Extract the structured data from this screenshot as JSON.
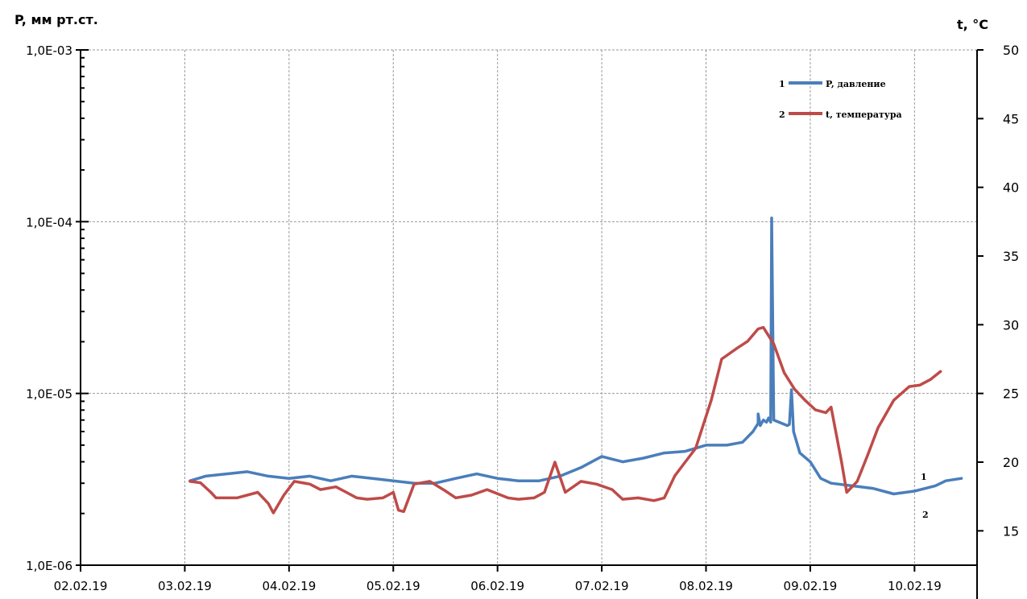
{
  "chart_data": {
    "type": "line",
    "left_axis": {
      "title": "P, мм рт.ст.",
      "scale": "log",
      "range": [
        1e-06,
        0.001
      ],
      "ticks": [
        {
          "value": 0.001,
          "label": "1,0E-03"
        },
        {
          "value": 0.0001,
          "label": "1,0E-04"
        },
        {
          "value": 1e-05,
          "label": "1,0E-05"
        },
        {
          "value": 1e-06,
          "label": "1,0E-06"
        }
      ]
    },
    "right_axis": {
      "title": "t, °C",
      "range": [
        12.5,
        50
      ],
      "ticks": [
        {
          "value": 50,
          "label": "50"
        },
        {
          "value": 45,
          "label": "45"
        },
        {
          "value": 40,
          "label": "40"
        },
        {
          "value": 35,
          "label": "35"
        },
        {
          "value": 30,
          "label": "30"
        },
        {
          "value": 25,
          "label": "25"
        },
        {
          "value": 20,
          "label": "20"
        },
        {
          "value": 15,
          "label": "15"
        }
      ]
    },
    "x_axis": {
      "range": [
        0,
        8.6
      ],
      "ticks": [
        {
          "value": 0,
          "label": "02.02.19"
        },
        {
          "value": 1,
          "label": "03.02.19"
        },
        {
          "value": 2,
          "label": "04.02.19"
        },
        {
          "value": 3,
          "label": "05.02.19"
        },
        {
          "value": 4,
          "label": "06.02.19"
        },
        {
          "value": 5,
          "label": "07.02.19"
        },
        {
          "value": 6,
          "label": "08.02.19"
        },
        {
          "value": 7,
          "label": "09.02.19"
        },
        {
          "value": 8,
          "label": "10.02.19"
        }
      ]
    },
    "grid": true,
    "legend": {
      "placement": "top-right",
      "entries": [
        {
          "num": "1",
          "name": "P, давление"
        },
        {
          "num": "2",
          "name": "t, температура"
        }
      ]
    },
    "series": [
      {
        "name": "P, давление",
        "label": "1",
        "axis": "left",
        "color": "#4a7ebb",
        "points": [
          [
            1.05,
            3.1e-06
          ],
          [
            1.2,
            3.3e-06
          ],
          [
            1.4,
            3.4e-06
          ],
          [
            1.6,
            3.5e-06
          ],
          [
            1.8,
            3.3e-06
          ],
          [
            2.0,
            3.2e-06
          ],
          [
            2.2,
            3.3e-06
          ],
          [
            2.4,
            3.1e-06
          ],
          [
            2.6,
            3.3e-06
          ],
          [
            2.8,
            3.2e-06
          ],
          [
            3.0,
            3.1e-06
          ],
          [
            3.2,
            3e-06
          ],
          [
            3.4,
            3e-06
          ],
          [
            3.6,
            3.2e-06
          ],
          [
            3.8,
            3.4e-06
          ],
          [
            4.0,
            3.2e-06
          ],
          [
            4.2,
            3.1e-06
          ],
          [
            4.4,
            3.1e-06
          ],
          [
            4.6,
            3.3e-06
          ],
          [
            4.8,
            3.7e-06
          ],
          [
            5.0,
            4.3e-06
          ],
          [
            5.2,
            4e-06
          ],
          [
            5.4,
            4.2e-06
          ],
          [
            5.6,
            4.5e-06
          ],
          [
            5.8,
            4.6e-06
          ],
          [
            6.0,
            5e-06
          ],
          [
            6.2,
            5e-06
          ],
          [
            6.35,
            5.2e-06
          ],
          [
            6.45,
            6e-06
          ],
          [
            6.5,
            6.7e-06
          ],
          [
            6.5,
            7.6e-06
          ],
          [
            6.52,
            6.5e-06
          ],
          [
            6.55,
            7e-06
          ],
          [
            6.58,
            6.8e-06
          ],
          [
            6.6,
            7.2e-06
          ],
          [
            6.62,
            6.8e-06
          ],
          [
            6.63,
            0.000105
          ],
          [
            6.65,
            7e-06
          ],
          [
            6.7,
            6.8e-06
          ],
          [
            6.78,
            6.5e-06
          ],
          [
            6.8,
            6.6e-06
          ],
          [
            6.82,
            1.05e-05
          ],
          [
            6.84,
            6e-06
          ],
          [
            6.9,
            4.5e-06
          ],
          [
            7.0,
            4e-06
          ],
          [
            7.1,
            3.2e-06
          ],
          [
            7.2,
            3e-06
          ],
          [
            7.4,
            2.9e-06
          ],
          [
            7.6,
            2.8e-06
          ],
          [
            7.8,
            2.6e-06
          ],
          [
            8.0,
            2.7e-06
          ],
          [
            8.2,
            2.9e-06
          ],
          [
            8.3,
            3.1e-06
          ],
          [
            8.45,
            3.2e-06
          ]
        ]
      },
      {
        "name": "t, температура",
        "label": "2",
        "axis": "right",
        "color": "#be4b48",
        "points": [
          [
            1.05,
            18.6
          ],
          [
            1.15,
            18.5
          ],
          [
            1.25,
            17.8
          ],
          [
            1.3,
            17.4
          ],
          [
            1.5,
            17.4
          ],
          [
            1.7,
            17.8
          ],
          [
            1.8,
            17.0
          ],
          [
            1.85,
            16.3
          ],
          [
            1.95,
            17.6
          ],
          [
            2.05,
            18.6
          ],
          [
            2.2,
            18.4
          ],
          [
            2.3,
            18.0
          ],
          [
            2.45,
            18.2
          ],
          [
            2.55,
            17.8
          ],
          [
            2.65,
            17.4
          ],
          [
            2.75,
            17.3
          ],
          [
            2.9,
            17.4
          ],
          [
            3.0,
            17.8
          ],
          [
            3.05,
            16.5
          ],
          [
            3.1,
            16.4
          ],
          [
            3.2,
            18.4
          ],
          [
            3.35,
            18.6
          ],
          [
            3.5,
            17.9
          ],
          [
            3.6,
            17.4
          ],
          [
            3.75,
            17.6
          ],
          [
            3.9,
            18.0
          ],
          [
            4.1,
            17.4
          ],
          [
            4.2,
            17.3
          ],
          [
            4.35,
            17.4
          ],
          [
            4.45,
            17.8
          ],
          [
            4.55,
            20.0
          ],
          [
            4.65,
            17.8
          ],
          [
            4.8,
            18.6
          ],
          [
            4.95,
            18.4
          ],
          [
            5.1,
            18.0
          ],
          [
            5.2,
            17.3
          ],
          [
            5.35,
            17.4
          ],
          [
            5.5,
            17.2
          ],
          [
            5.6,
            17.4
          ],
          [
            5.7,
            19.0
          ],
          [
            5.8,
            20.0
          ],
          [
            5.9,
            21.0
          ],
          [
            6.05,
            24.5
          ],
          [
            6.15,
            27.5
          ],
          [
            6.3,
            28.3
          ],
          [
            6.4,
            28.8
          ],
          [
            6.5,
            29.7
          ],
          [
            6.55,
            29.8
          ],
          [
            6.65,
            28.6
          ],
          [
            6.75,
            26.5
          ],
          [
            6.85,
            25.3
          ],
          [
            6.95,
            24.5
          ],
          [
            7.05,
            23.8
          ],
          [
            7.15,
            23.6
          ],
          [
            7.2,
            24.0
          ],
          [
            7.3,
            20.0
          ],
          [
            7.35,
            17.8
          ],
          [
            7.45,
            18.6
          ],
          [
            7.55,
            20.5
          ],
          [
            7.65,
            22.5
          ],
          [
            7.8,
            24.5
          ],
          [
            7.95,
            25.5
          ],
          [
            8.05,
            25.6
          ],
          [
            8.15,
            26.0
          ],
          [
            8.25,
            26.6
          ]
        ]
      }
    ]
  }
}
